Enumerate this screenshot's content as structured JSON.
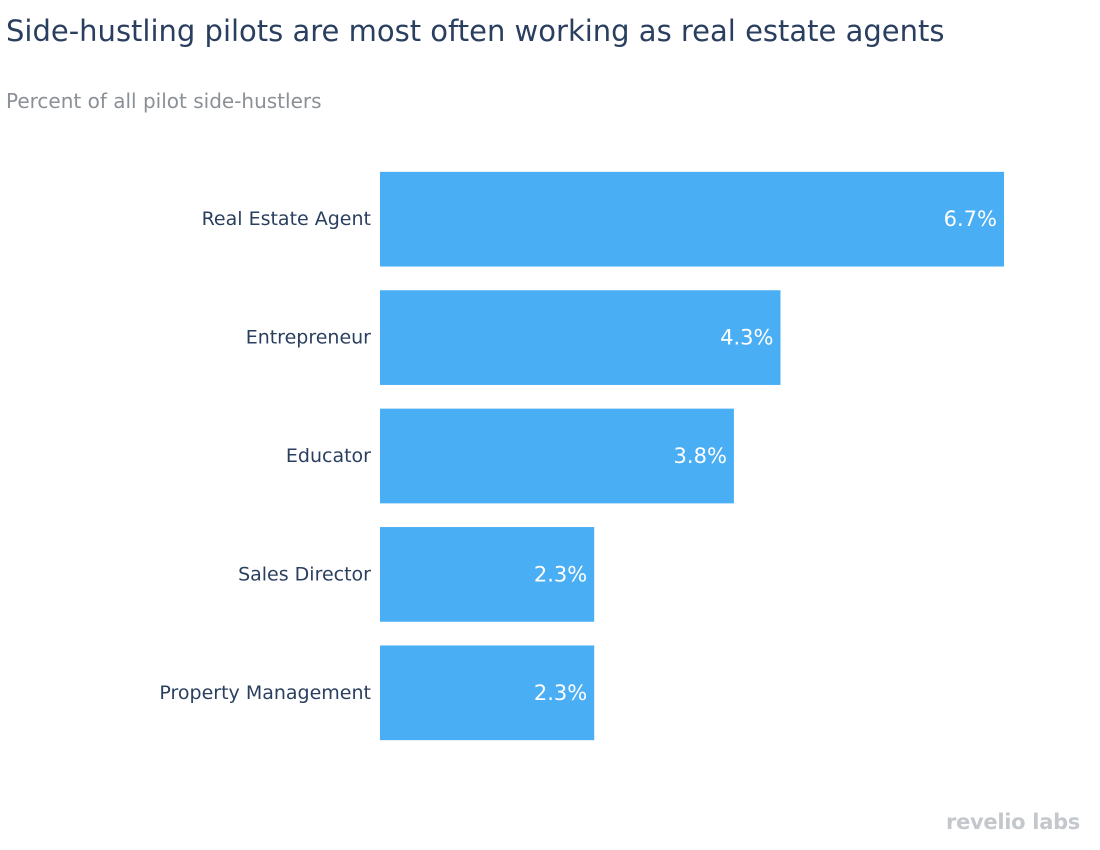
{
  "header": {
    "title": "Side-hustling pilots are most often working as real estate agents",
    "subtitle": "Percent of all pilot side-hustlers"
  },
  "brand": {
    "logo_text": "revelio labs"
  },
  "colors": {
    "bar": "#4aaef5",
    "bar_label": "#ffffff",
    "category_label": "#2a3f5f"
  },
  "chart_data": {
    "type": "bar",
    "orientation": "horizontal",
    "categories": [
      "Real Estate Agent",
      "Entrepreneur",
      "Educator",
      "Sales Director",
      "Property Management"
    ],
    "values": [
      6.7,
      4.3,
      3.8,
      2.3,
      2.3
    ],
    "data_labels": [
      "6.7%",
      "4.3%",
      "3.8%",
      "2.3%",
      "2.3%"
    ],
    "title": "Side-hustling pilots are most often working as real estate agents",
    "subtitle": "Percent of all pilot side-hustlers",
    "xlabel": "",
    "ylabel": "",
    "xlim": [
      0,
      6.7
    ],
    "grid": false,
    "legend": "none"
  }
}
